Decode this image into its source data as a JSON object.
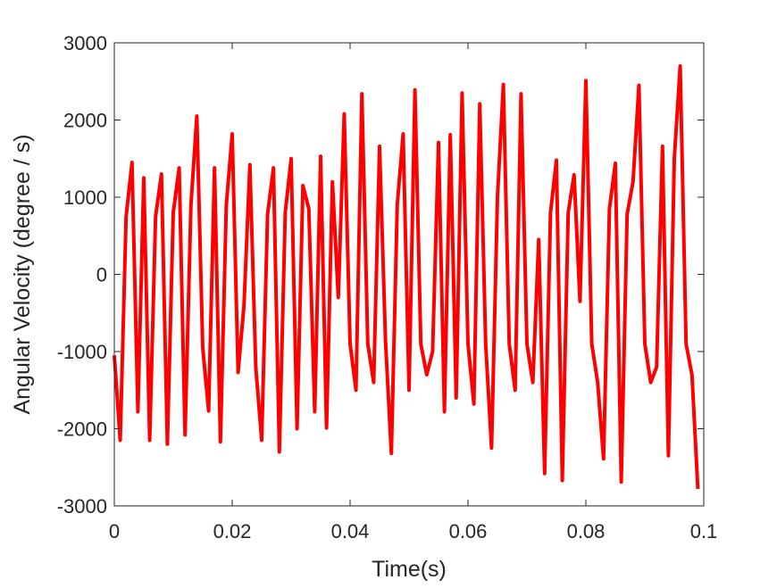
{
  "chart_data": {
    "type": "line",
    "xlabel": "Time(s)",
    "ylabel": "Angular Velocity (degree / s)",
    "xlim": [
      0,
      0.1
    ],
    "ylim": [
      -3000,
      3000
    ],
    "xticks": [
      0,
      0.02,
      0.04,
      0.06,
      0.08,
      0.1
    ],
    "xtick_labels": [
      "0",
      "0.02",
      "0.04",
      "0.06",
      "0.08",
      "0.1"
    ],
    "yticks": [
      3000,
      2000,
      1000,
      0,
      -1000,
      -2000,
      -3000
    ],
    "ytick_labels": [
      "3000",
      "2000",
      "1000",
      "0",
      "-1000",
      "-2000",
      "-3000"
    ],
    "grid": false,
    "line_color": "#ff0000",
    "series": [
      {
        "x": [
          0,
          0.001,
          0.002,
          0.003,
          0.004,
          0.005,
          0.006,
          0.007,
          0.008,
          0.009,
          0.01,
          0.011,
          0.012,
          0.013,
          0.014,
          0.015,
          0.016,
          0.017,
          0.018,
          0.019,
          0.02,
          0.021,
          0.022,
          0.023,
          0.024,
          0.025,
          0.026,
          0.027,
          0.028,
          0.029,
          0.03,
          0.031,
          0.032,
          0.033,
          0.034,
          0.035,
          0.036,
          0.037,
          0.038,
          0.039,
          0.04,
          0.041,
          0.042,
          0.043,
          0.044,
          0.045,
          0.046,
          0.047,
          0.048,
          0.049,
          0.05,
          0.051,
          0.052,
          0.053,
          0.054,
          0.055,
          0.056,
          0.057,
          0.058,
          0.059,
          0.06,
          0.061,
          0.062,
          0.063,
          0.064,
          0.065,
          0.066,
          0.067,
          0.068,
          0.069,
          0.07,
          0.071,
          0.072,
          0.073,
          0.074,
          0.075,
          0.076,
          0.077,
          0.078,
          0.079,
          0.08,
          0.081,
          0.082,
          0.083,
          0.084,
          0.085,
          0.086,
          0.087,
          0.088,
          0.089,
          0.09,
          0.091,
          0.092,
          0.093,
          0.094,
          0.095,
          0.096,
          0.097,
          0.098,
          0.099
        ],
        "y": [
          -1050,
          -2150,
          750,
          1450,
          -1780,
          1250,
          -2150,
          750,
          1300,
          -2200,
          800,
          1380,
          -2080,
          900,
          2050,
          -950,
          -1770,
          1380,
          -2170,
          900,
          1820,
          -1270,
          -400,
          1420,
          -1200,
          -2150,
          780,
          1380,
          -2300,
          800,
          1500,
          -2000,
          1150,
          850,
          -1780,
          1530,
          -1990,
          1200,
          -300,
          2080,
          -900,
          -1500,
          2340,
          -900,
          -1400,
          1660,
          -850,
          -2320,
          900,
          1820,
          -1500,
          2390,
          -900,
          -1300,
          -1000,
          1710,
          -1780,
          1810,
          -1600,
          2350,
          -900,
          -1680,
          2210,
          -900,
          -2250,
          1000,
          2460,
          -900,
          -1500,
          2340,
          -900,
          -1400,
          450,
          -2580,
          800,
          1480,
          -2670,
          800,
          1290,
          -350,
          2510,
          -900,
          -1400,
          -2390,
          850,
          1440,
          -2690,
          780,
          1200,
          2450,
          -900,
          -1400,
          -1200,
          1660,
          -2350,
          1500,
          2700,
          -900,
          -1300,
          -2780
        ]
      }
    ]
  }
}
